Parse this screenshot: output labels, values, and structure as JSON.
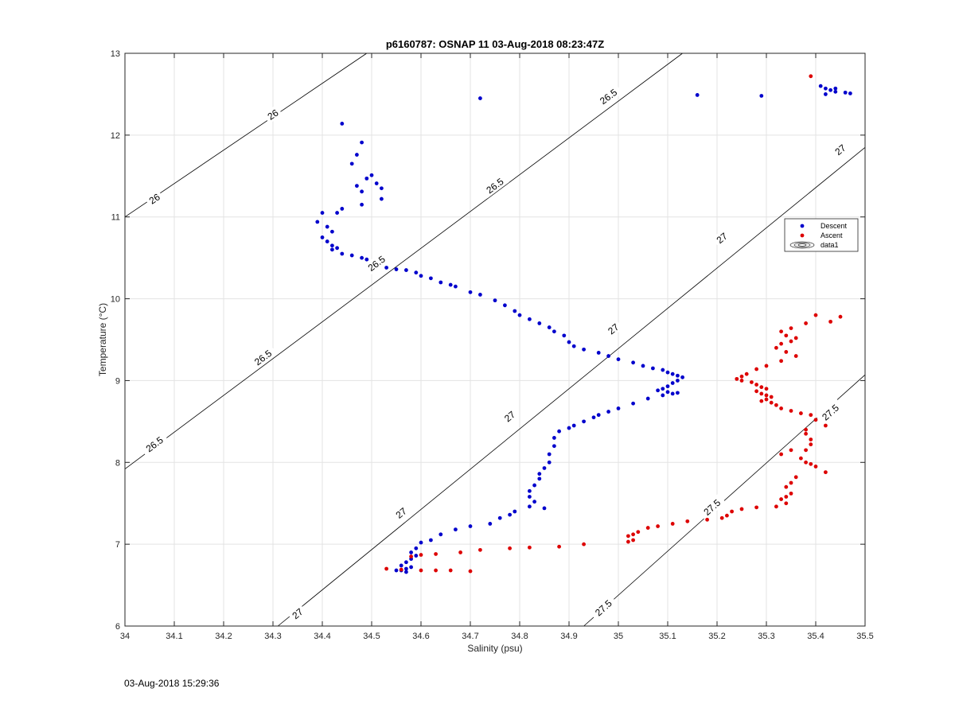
{
  "chart_data": {
    "type": "scatter",
    "title": "p6160787: OSNAP 11 03-Aug-2018 08:23:47Z",
    "xlabel": "Salinity (psu)",
    "ylabel": "Temperature (°C)",
    "xlim": [
      34,
      35.5
    ],
    "ylim": [
      6,
      13
    ],
    "xticks": [
      "34",
      "34.1",
      "34.2",
      "34.3",
      "34.4",
      "34.5",
      "34.6",
      "34.7",
      "34.8",
      "34.9",
      "35",
      "35.1",
      "35.2",
      "35.3",
      "35.4",
      "35.5"
    ],
    "yticks": [
      "6",
      "7",
      "8",
      "9",
      "10",
      "11",
      "12",
      "13"
    ],
    "grid": true,
    "legend": {
      "position": "right",
      "entries": [
        "Descent",
        "Ascent",
        "data1"
      ]
    },
    "contours": [
      {
        "level": "26",
        "points": [
          [
            34.0,
            11.0
          ],
          [
            34.49,
            13.0
          ]
        ],
        "labels": [
          {
            "s": 34.06,
            "t": 11.22
          },
          {
            "s": 34.3,
            "t": 12.25
          }
        ]
      },
      {
        "level": "26.5",
        "points": [
          [
            34.0,
            7.92
          ],
          [
            35.13,
            13.0
          ]
        ],
        "labels": [
          {
            "s": 34.06,
            "t": 8.22
          },
          {
            "s": 34.28,
            "t": 9.28
          },
          {
            "s": 34.51,
            "t": 10.43
          },
          {
            "s": 34.75,
            "t": 11.38
          },
          {
            "s": 34.98,
            "t": 12.47
          }
        ]
      },
      {
        "level": "27",
        "points": [
          [
            34.31,
            6.0
          ],
          [
            35.5,
            11.85
          ]
        ],
        "labels": [
          {
            "s": 34.35,
            "t": 6.15
          },
          {
            "s": 34.56,
            "t": 7.38
          },
          {
            "s": 34.78,
            "t": 8.56
          },
          {
            "s": 34.99,
            "t": 9.63
          },
          {
            "s": 35.21,
            "t": 10.74
          },
          {
            "s": 35.45,
            "t": 11.82
          }
        ]
      },
      {
        "level": "27.5",
        "points": [
          [
            34.93,
            6.0
          ],
          [
            35.5,
            9.07
          ]
        ],
        "labels": [
          {
            "s": 34.97,
            "t": 6.22
          },
          {
            "s": 35.19,
            "t": 7.45
          },
          {
            "s": 35.43,
            "t": 8.61
          }
        ]
      }
    ],
    "series": [
      {
        "name": "Descent",
        "color": "#0000cc",
        "points": [
          [
            34.72,
            12.45
          ],
          [
            35.16,
            12.49
          ],
          [
            35.29,
            12.48
          ],
          [
            35.41,
            12.6
          ],
          [
            35.42,
            12.57
          ],
          [
            35.43,
            12.55
          ],
          [
            35.44,
            12.53
          ],
          [
            35.46,
            12.52
          ],
          [
            35.47,
            12.51
          ],
          [
            35.42,
            12.5
          ],
          [
            35.44,
            12.57
          ],
          [
            34.44,
            12.14
          ],
          [
            34.48,
            11.91
          ],
          [
            34.47,
            11.76
          ],
          [
            34.46,
            11.65
          ],
          [
            34.49,
            11.47
          ],
          [
            34.5,
            11.51
          ],
          [
            34.47,
            11.38
          ],
          [
            34.51,
            11.41
          ],
          [
            34.52,
            11.35
          ],
          [
            34.48,
            11.31
          ],
          [
            34.52,
            11.22
          ],
          [
            34.48,
            11.15
          ],
          [
            34.44,
            11.1
          ],
          [
            34.43,
            11.05
          ],
          [
            34.4,
            11.05
          ],
          [
            34.39,
            10.94
          ],
          [
            34.41,
            10.88
          ],
          [
            34.42,
            10.82
          ],
          [
            34.4,
            10.75
          ],
          [
            34.41,
            10.7
          ],
          [
            34.42,
            10.65
          ],
          [
            34.43,
            10.62
          ],
          [
            34.42,
            10.6
          ],
          [
            34.44,
            10.55
          ],
          [
            34.46,
            10.53
          ],
          [
            34.48,
            10.5
          ],
          [
            34.49,
            10.48
          ],
          [
            34.53,
            10.38
          ],
          [
            34.55,
            10.36
          ],
          [
            34.57,
            10.35
          ],
          [
            34.59,
            10.32
          ],
          [
            34.6,
            10.28
          ],
          [
            34.62,
            10.25
          ],
          [
            34.64,
            10.2
          ],
          [
            34.66,
            10.17
          ],
          [
            34.67,
            10.15
          ],
          [
            34.7,
            10.08
          ],
          [
            34.72,
            10.05
          ],
          [
            34.75,
            9.98
          ],
          [
            34.77,
            9.92
          ],
          [
            34.79,
            9.85
          ],
          [
            34.8,
            9.8
          ],
          [
            34.82,
            9.75
          ],
          [
            34.84,
            9.7
          ],
          [
            34.86,
            9.65
          ],
          [
            34.87,
            9.6
          ],
          [
            34.89,
            9.55
          ],
          [
            34.9,
            9.47
          ],
          [
            34.91,
            9.42
          ],
          [
            34.93,
            9.38
          ],
          [
            34.96,
            9.34
          ],
          [
            34.98,
            9.3
          ],
          [
            35.0,
            9.26
          ],
          [
            35.03,
            9.22
          ],
          [
            35.05,
            9.18
          ],
          [
            35.07,
            9.15
          ],
          [
            35.09,
            9.13
          ],
          [
            35.1,
            9.1
          ],
          [
            35.11,
            9.08
          ],
          [
            35.12,
            9.06
          ],
          [
            35.13,
            9.04
          ],
          [
            35.12,
            9.0
          ],
          [
            35.11,
            8.97
          ],
          [
            35.1,
            8.93
          ],
          [
            35.09,
            8.9
          ],
          [
            35.08,
            8.88
          ],
          [
            35.1,
            8.86
          ],
          [
            35.11,
            8.84
          ],
          [
            35.12,
            8.85
          ],
          [
            35.09,
            8.82
          ],
          [
            35.06,
            8.78
          ],
          [
            35.03,
            8.72
          ],
          [
            35.0,
            8.66
          ],
          [
            34.98,
            8.62
          ],
          [
            34.96,
            8.58
          ],
          [
            34.95,
            8.55
          ],
          [
            34.93,
            8.5
          ],
          [
            34.91,
            8.45
          ],
          [
            34.9,
            8.42
          ],
          [
            34.88,
            8.38
          ],
          [
            34.87,
            8.3
          ],
          [
            34.87,
            8.2
          ],
          [
            34.86,
            8.1
          ],
          [
            34.86,
            8.0
          ],
          [
            34.85,
            7.93
          ],
          [
            34.84,
            7.86
          ],
          [
            34.84,
            7.8
          ],
          [
            34.83,
            7.72
          ],
          [
            34.82,
            7.65
          ],
          [
            34.82,
            7.58
          ],
          [
            34.83,
            7.52
          ],
          [
            34.82,
            7.46
          ],
          [
            34.85,
            7.44
          ],
          [
            34.79,
            7.4
          ],
          [
            34.78,
            7.36
          ],
          [
            34.76,
            7.32
          ],
          [
            34.74,
            7.25
          ],
          [
            34.7,
            7.22
          ],
          [
            34.67,
            7.18
          ],
          [
            34.64,
            7.12
          ],
          [
            34.62,
            7.05
          ],
          [
            34.6,
            7.02
          ],
          [
            34.59,
            6.95
          ],
          [
            34.58,
            6.9
          ],
          [
            34.59,
            6.86
          ],
          [
            34.58,
            6.82
          ],
          [
            34.57,
            6.78
          ],
          [
            34.56,
            6.74
          ],
          [
            34.58,
            6.72
          ],
          [
            34.57,
            6.7
          ],
          [
            34.56,
            6.68
          ],
          [
            34.55,
            6.68
          ],
          [
            34.57,
            6.66
          ]
        ]
      },
      {
        "name": "Ascent",
        "color": "#dd0000",
        "points": [
          [
            35.39,
            12.72
          ],
          [
            35.4,
            9.8
          ],
          [
            35.45,
            9.78
          ],
          [
            35.43,
            9.72
          ],
          [
            35.38,
            9.7
          ],
          [
            35.35,
            9.64
          ],
          [
            35.33,
            9.6
          ],
          [
            35.34,
            9.55
          ],
          [
            35.36,
            9.52
          ],
          [
            35.35,
            9.48
          ],
          [
            35.33,
            9.45
          ],
          [
            35.32,
            9.4
          ],
          [
            35.34,
            9.35
          ],
          [
            35.36,
            9.3
          ],
          [
            35.33,
            9.24
          ],
          [
            35.3,
            9.18
          ],
          [
            35.28,
            9.14
          ],
          [
            35.26,
            9.08
          ],
          [
            35.25,
            9.05
          ],
          [
            35.24,
            9.02
          ],
          [
            35.25,
            9.0
          ],
          [
            35.27,
            8.98
          ],
          [
            35.28,
            8.95
          ],
          [
            35.29,
            8.92
          ],
          [
            35.3,
            8.9
          ],
          [
            35.28,
            8.87
          ],
          [
            35.29,
            8.84
          ],
          [
            35.3,
            8.82
          ],
          [
            35.31,
            8.8
          ],
          [
            35.3,
            8.77
          ],
          [
            35.29,
            8.75
          ],
          [
            35.31,
            8.73
          ],
          [
            35.32,
            8.7
          ],
          [
            35.33,
            8.66
          ],
          [
            35.35,
            8.63
          ],
          [
            35.37,
            8.6
          ],
          [
            35.39,
            8.58
          ],
          [
            35.4,
            8.52
          ],
          [
            35.42,
            8.45
          ],
          [
            35.38,
            8.4
          ],
          [
            35.38,
            8.35
          ],
          [
            35.39,
            8.28
          ],
          [
            35.39,
            8.22
          ],
          [
            35.38,
            8.15
          ],
          [
            35.37,
            8.05
          ],
          [
            35.38,
            8.0
          ],
          [
            35.39,
            7.98
          ],
          [
            35.4,
            7.95
          ],
          [
            35.42,
            7.88
          ],
          [
            35.35,
            8.15
          ],
          [
            35.33,
            8.1
          ],
          [
            35.36,
            7.82
          ],
          [
            35.35,
            7.75
          ],
          [
            35.34,
            7.7
          ],
          [
            35.35,
            7.62
          ],
          [
            35.34,
            7.58
          ],
          [
            35.33,
            7.55
          ],
          [
            35.34,
            7.5
          ],
          [
            35.32,
            7.46
          ],
          [
            35.28,
            7.45
          ],
          [
            35.25,
            7.43
          ],
          [
            35.23,
            7.4
          ],
          [
            35.22,
            7.35
          ],
          [
            35.21,
            7.32
          ],
          [
            35.18,
            7.3
          ],
          [
            35.14,
            7.28
          ],
          [
            35.11,
            7.25
          ],
          [
            35.08,
            7.22
          ],
          [
            35.06,
            7.2
          ],
          [
            35.04,
            7.15
          ],
          [
            35.03,
            7.12
          ],
          [
            35.02,
            7.1
          ],
          [
            35.03,
            7.05
          ],
          [
            35.02,
            7.03
          ],
          [
            34.93,
            7.0
          ],
          [
            34.88,
            6.97
          ],
          [
            34.82,
            6.96
          ],
          [
            34.78,
            6.95
          ],
          [
            34.72,
            6.93
          ],
          [
            34.68,
            6.9
          ],
          [
            34.63,
            6.88
          ],
          [
            34.6,
            6.87
          ],
          [
            34.58,
            6.85
          ],
          [
            34.53,
            6.7
          ],
          [
            34.56,
            6.69
          ],
          [
            34.6,
            6.68
          ],
          [
            34.63,
            6.68
          ],
          [
            34.66,
            6.68
          ],
          [
            34.7,
            6.67
          ]
        ]
      }
    ]
  },
  "footer": {
    "timestamp": "03-Aug-2018 15:29:36"
  }
}
